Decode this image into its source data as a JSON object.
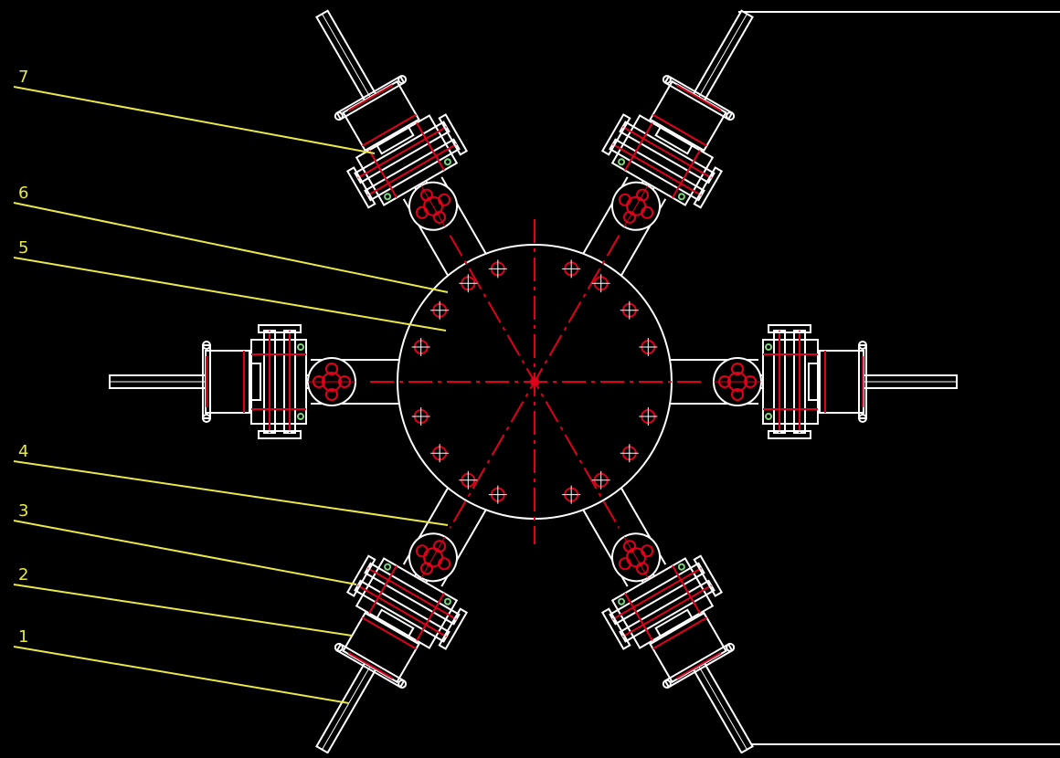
{
  "drawing": {
    "background_color": "#000000",
    "outline_color": "#ffffff",
    "centerline_color": "#e0001b",
    "leader_color": "#e8e84a",
    "bolt_count": 16,
    "arm_count": 6,
    "callouts": [
      {
        "label": "7"
      },
      {
        "label": "6"
      },
      {
        "label": "5"
      },
      {
        "label": "4"
      },
      {
        "label": "3"
      },
      {
        "label": "2"
      },
      {
        "label": "1"
      }
    ]
  }
}
